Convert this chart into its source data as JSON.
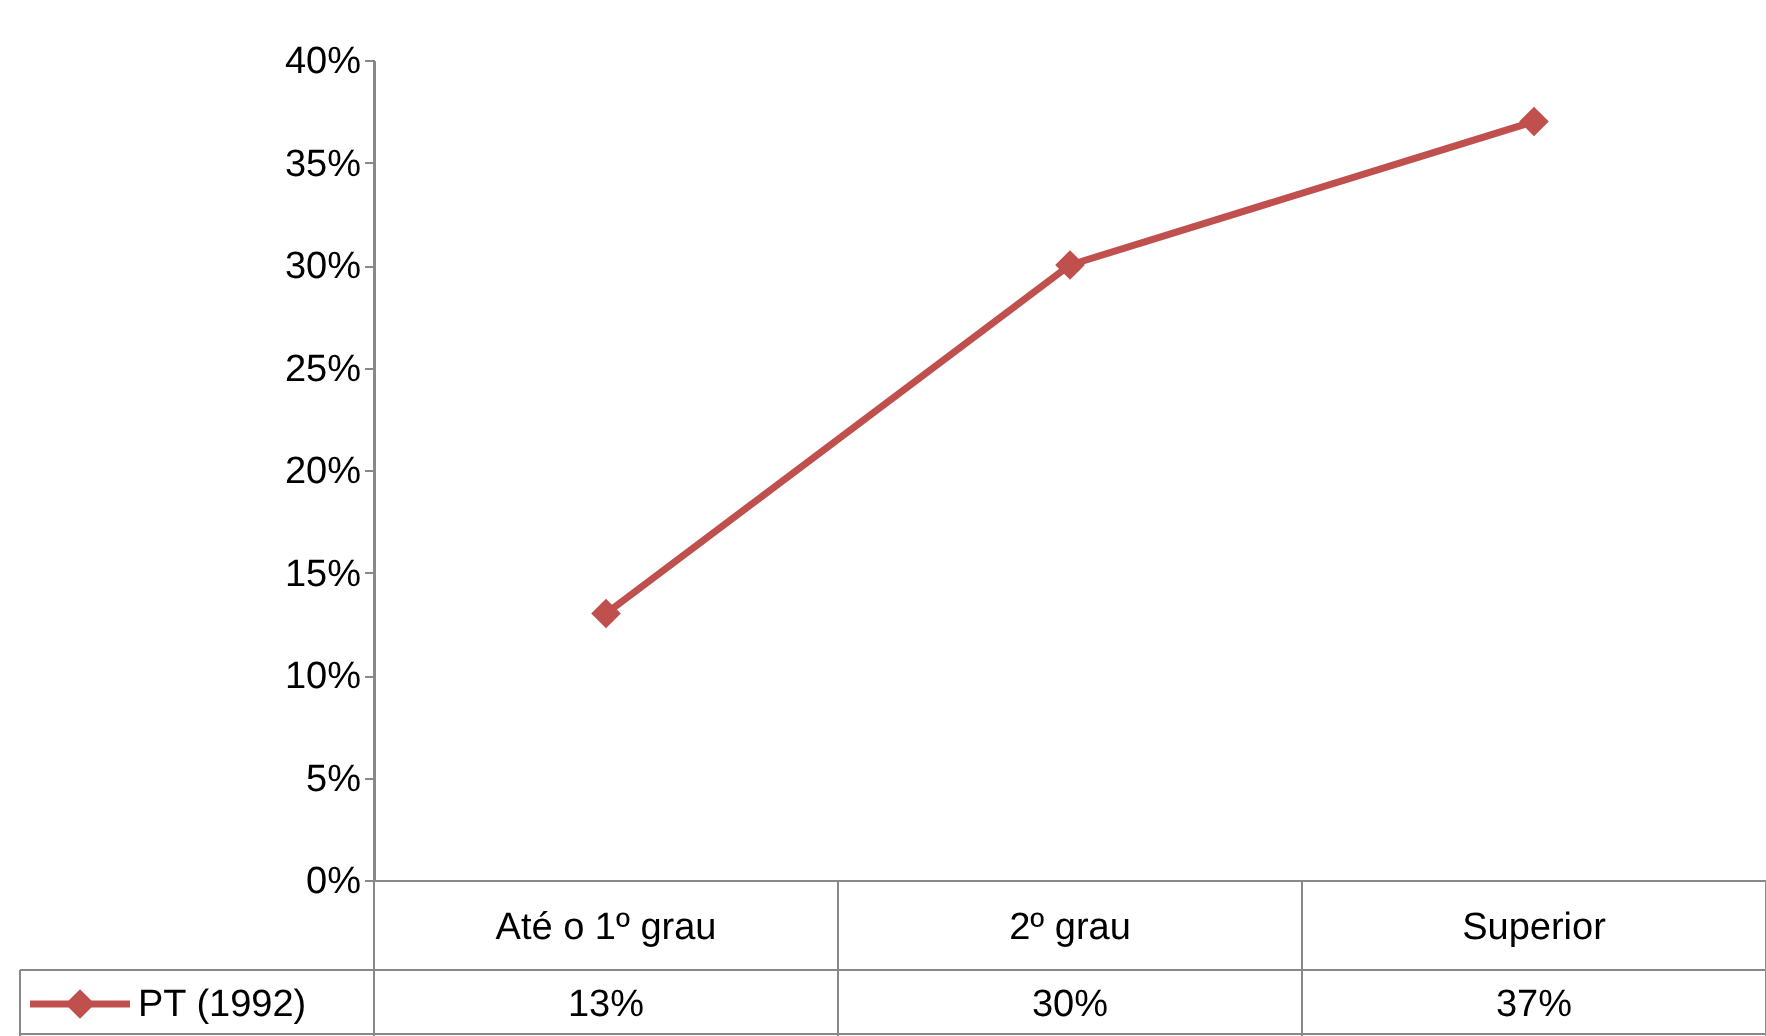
{
  "chart_data": {
    "type": "line",
    "categories": [
      "Até o 1º grau",
      "2º grau",
      "Superior"
    ],
    "series": [
      {
        "name": "PT (1992)",
        "color": "#c0504d",
        "values": [
          13,
          30,
          37
        ],
        "value_labels": [
          "13%",
          "30%",
          "37%"
        ]
      }
    ],
    "ylim": [
      0,
      40
    ],
    "yticks": [
      {
        "value": 0,
        "label": "0%"
      },
      {
        "value": 5,
        "label": "5%"
      },
      {
        "value": 10,
        "label": "10%"
      },
      {
        "value": 15,
        "label": "15%"
      },
      {
        "value": 20,
        "label": "20%"
      },
      {
        "value": 25,
        "label": "25%"
      },
      {
        "value": 30,
        "label": "30%"
      },
      {
        "value": 35,
        "label": "35%"
      },
      {
        "value": 40,
        "label": "40%"
      }
    ],
    "marker": "diamond",
    "line_style": "solid",
    "grid": false,
    "legend": "bottom left"
  }
}
